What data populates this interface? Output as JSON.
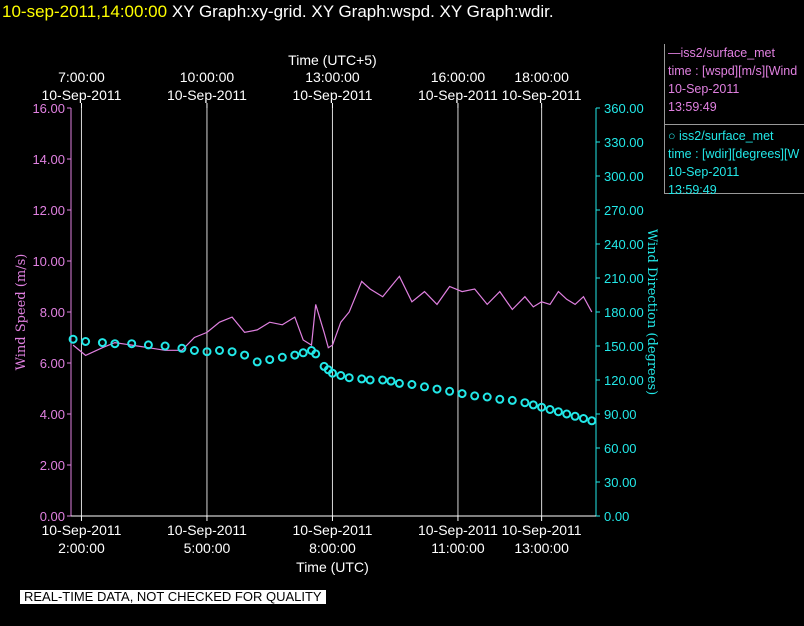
{
  "header": {
    "timestamp": "10-sep-2011,14:00:00",
    "title": "XY Graph:xy-grid.  XY Graph:wspd.  XY Graph:wdir."
  },
  "legend": {
    "wspd": {
      "dataset": "iss2/surface_met",
      "var": "time : [wspd][m/s][Wind",
      "date": "10-Sep-2011",
      "time": "13:59:49",
      "color": "#e080e0"
    },
    "wdir": {
      "dataset": "iss2/surface_met",
      "var": "time : [wdir][degrees][W",
      "date": "10-Sep-2011",
      "time": "13:59:49",
      "color": "#22e8e8"
    }
  },
  "disclaimer": "REAL-TIME DATA, NOT CHECKED FOR QUALITY",
  "chart_data": {
    "type": "line",
    "top_axis_label": "Time (UTC+5)",
    "xlabel": "Time (UTC)",
    "ylabel": "Wind Speed (m/s)",
    "y2label": "Wind Direction (degrees)",
    "x_range_utc_hours": [
      1.75,
      14.3
    ],
    "bottom_ticks": [
      {
        "hour": 2,
        "date": "10-Sep-2011",
        "time": "2:00:00"
      },
      {
        "hour": 5,
        "date": "10-Sep-2011",
        "time": "5:00:00"
      },
      {
        "hour": 8,
        "date": "10-Sep-2011",
        "time": "8:00:00"
      },
      {
        "hour": 11,
        "date": "10-Sep-2011",
        "time": "11:00:00"
      },
      {
        "hour": 13,
        "date": "10-Sep-2011",
        "time": "13:00:00"
      }
    ],
    "top_ticks": [
      {
        "hour": 2,
        "date": "10-Sep-2011",
        "time": "7:00:00"
      },
      {
        "hour": 5,
        "date": "10-Sep-2011",
        "time": "10:00:00"
      },
      {
        "hour": 8,
        "date": "10-Sep-2011",
        "time": "13:00:00"
      },
      {
        "hour": 11,
        "date": "10-Sep-2011",
        "time": "16:00:00"
      },
      {
        "hour": 13,
        "date": "10-Sep-2011",
        "time": "18:00:00"
      }
    ],
    "ylim": [
      0,
      16
    ],
    "y_ticks": [
      "0.00",
      "2.00",
      "4.00",
      "6.00",
      "8.00",
      "10.00",
      "12.00",
      "14.00",
      "16.00"
    ],
    "y2lim": [
      0,
      360
    ],
    "y2_ticks": [
      "0.00",
      "30.00",
      "60.00",
      "90.00",
      "120.00",
      "150.00",
      "180.00",
      "210.00",
      "240.00",
      "270.00",
      "300.00",
      "330.00",
      "360.00"
    ],
    "grid": true,
    "series": [
      {
        "name": "iss2/surface_met wspd",
        "axis": "left",
        "color": "#e080e0",
        "style": "line",
        "x": [
          1.8,
          2.1,
          2.5,
          2.8,
          3.2,
          3.6,
          4.0,
          4.4,
          4.7,
          5.0,
          5.3,
          5.6,
          5.9,
          6.2,
          6.5,
          6.8,
          7.1,
          7.3,
          7.5,
          7.6,
          7.8,
          7.9,
          8.0,
          8.2,
          8.4,
          8.7,
          8.9,
          9.2,
          9.4,
          9.6,
          9.9,
          10.2,
          10.5,
          10.8,
          11.1,
          11.4,
          11.7,
          12.0,
          12.3,
          12.6,
          12.8,
          13.0,
          13.2,
          13.4,
          13.6,
          13.8,
          14.0,
          14.2
        ],
        "y": [
          6.7,
          6.3,
          6.6,
          6.8,
          6.7,
          6.6,
          6.5,
          6.5,
          7.0,
          7.2,
          7.6,
          7.8,
          7.2,
          7.3,
          7.6,
          7.5,
          7.8,
          6.9,
          6.7,
          8.3,
          7.2,
          6.6,
          6.7,
          7.6,
          8.0,
          9.2,
          8.9,
          8.6,
          9.0,
          9.4,
          8.4,
          8.8,
          8.3,
          9.0,
          8.8,
          8.9,
          8.3,
          8.8,
          8.1,
          8.6,
          8.2,
          8.4,
          8.3,
          8.8,
          8.5,
          8.3,
          8.6,
          8.0
        ]
      },
      {
        "name": "iss2/surface_met wdir",
        "axis": "right",
        "color": "#22e8e8",
        "style": "markers",
        "x": [
          1.8,
          2.1,
          2.5,
          2.8,
          3.2,
          3.6,
          4.0,
          4.4,
          4.7,
          5.0,
          5.3,
          5.6,
          5.9,
          6.2,
          6.5,
          6.8,
          7.1,
          7.3,
          7.5,
          7.6,
          7.8,
          7.9,
          8.0,
          8.2,
          8.4,
          8.7,
          8.9,
          9.2,
          9.4,
          9.6,
          9.9,
          10.2,
          10.5,
          10.8,
          11.1,
          11.4,
          11.7,
          12.0,
          12.3,
          12.6,
          12.8,
          13.0,
          13.2,
          13.4,
          13.6,
          13.8,
          14.0,
          14.2
        ],
        "y": [
          156,
          154,
          153,
          152,
          152,
          151,
          150,
          148,
          146,
          145,
          146,
          145,
          142,
          136,
          138,
          140,
          142,
          144,
          146,
          143,
          132,
          129,
          126,
          124,
          122,
          121,
          120,
          120,
          119,
          117,
          116,
          114,
          112,
          110,
          108,
          106,
          105,
          103,
          102,
          100,
          98,
          96,
          94,
          92,
          90,
          88,
          86,
          84
        ]
      }
    ]
  }
}
